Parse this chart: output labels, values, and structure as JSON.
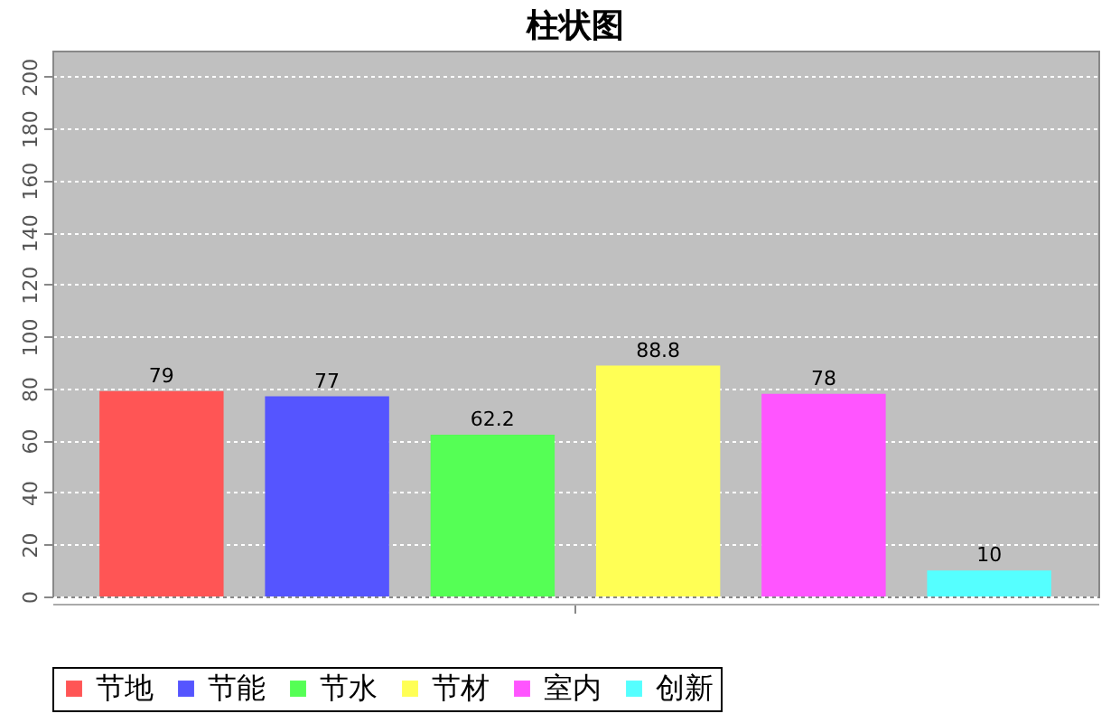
{
  "chart_data": {
    "type": "bar",
    "title": "柱状图",
    "categories": [
      null
    ],
    "series": [
      {
        "name": "节地",
        "color": "#ff5555",
        "values": [
          79
        ]
      },
      {
        "name": "节能",
        "color": "#5555ff",
        "values": [
          77
        ]
      },
      {
        "name": "节水",
        "color": "#55ff55",
        "values": [
          62.2
        ]
      },
      {
        "name": "节材",
        "color": "#ffff55",
        "values": [
          88.8
        ]
      },
      {
        "name": "室内",
        "color": "#ff55ff",
        "values": [
          78
        ]
      },
      {
        "name": "创新",
        "color": "#55ffff",
        "values": [
          10
        ]
      }
    ],
    "ylim": [
      0,
      210
    ],
    "yticks": [
      0,
      20,
      40,
      60,
      80,
      100,
      120,
      140,
      160,
      180,
      200
    ],
    "grid": "y",
    "legend": "bottom",
    "data_labels": true
  }
}
